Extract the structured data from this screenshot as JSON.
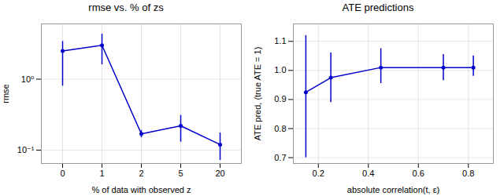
{
  "chart_data": [
    {
      "type": "line",
      "title": "rmse vs. % of zs",
      "xlabel": "% of data with observed z",
      "ylabel": "rmse",
      "categories": [
        "0",
        "1",
        "2",
        "5",
        "20"
      ],
      "values": [
        2.5,
        3.0,
        0.17,
        0.22,
        0.12
      ],
      "error_low": [
        1.7,
        1.4,
        0.02,
        0.09,
        0.048
      ],
      "error_high": [
        0.9,
        1.3,
        0.02,
        0.09,
        0.055
      ],
      "color": "#0000cc",
      "marker": "circle",
      "log": "y",
      "ylim": [
        0.065,
        6.0
      ],
      "yticks": [
        {
          "value": 0.1,
          "label": "10⁻¹"
        },
        {
          "value": 1,
          "label": "10⁰"
        }
      ],
      "grid": true
    },
    {
      "type": "line",
      "title": "ATE predictions",
      "xlabel": "absolute correlation(t, ε)",
      "ylabel": "ATE pred, (true ATE = 1)",
      "x": [
        0.15,
        0.25,
        0.45,
        0.7,
        0.82
      ],
      "values": [
        0.925,
        0.975,
        1.01,
        1.01,
        1.01
      ],
      "error_low": [
        0.225,
        0.085,
        0.055,
        0.045,
        0.03
      ],
      "error_high": [
        0.195,
        0.085,
        0.065,
        0.045,
        0.04
      ],
      "color": "#0000cc",
      "marker": "circle",
      "xlim": [
        0.1,
        0.9
      ],
      "xticks": [
        0.2,
        0.4,
        0.6,
        0.8
      ],
      "ylim": [
        0.68,
        1.16
      ],
      "yticks": [
        0.7,
        0.8,
        0.9,
        {
          "value": 1.0,
          "label": "1.0"
        },
        1.1
      ],
      "grid": true
    }
  ]
}
